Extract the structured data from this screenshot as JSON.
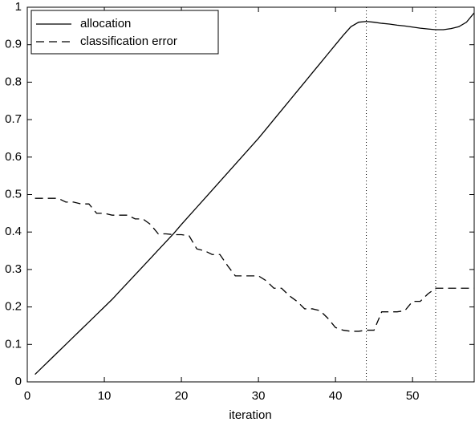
{
  "chart_data": {
    "type": "line",
    "xlabel": "iteration",
    "x": [
      1,
      2,
      3,
      4,
      5,
      6,
      7,
      8,
      9,
      10,
      11,
      12,
      13,
      14,
      15,
      16,
      17,
      18,
      19,
      20,
      21,
      22,
      23,
      24,
      25,
      26,
      27,
      28,
      29,
      30,
      31,
      32,
      33,
      34,
      35,
      36,
      37,
      38,
      39,
      40,
      41,
      42,
      43,
      44,
      45,
      46,
      47,
      48,
      49,
      50,
      51,
      52,
      53,
      54,
      55,
      56,
      57,
      58
    ],
    "series": [
      {
        "name": "allocation",
        "color": "#000000",
        "style": "solid",
        "values": [
          0.02,
          0.04,
          0.06,
          0.08,
          0.1,
          0.12,
          0.14,
          0.16,
          0.18,
          0.2,
          0.22,
          0.242,
          0.264,
          0.286,
          0.308,
          0.33,
          0.352,
          0.374,
          0.396,
          0.42,
          0.443,
          0.466,
          0.489,
          0.512,
          0.535,
          0.558,
          0.581,
          0.604,
          0.627,
          0.65,
          0.675,
          0.7,
          0.725,
          0.75,
          0.775,
          0.8,
          0.825,
          0.85,
          0.875,
          0.9,
          0.925,
          0.948,
          0.96,
          0.962,
          0.96,
          0.957,
          0.955,
          0.952,
          0.95,
          0.947,
          0.944,
          0.942,
          0.94,
          0.94,
          0.943,
          0.948,
          0.96,
          0.985
        ]
      },
      {
        "name": "classification error",
        "color": "#000000",
        "style": "dashed",
        "values": [
          0.49,
          0.49,
          0.49,
          0.49,
          0.48,
          0.48,
          0.475,
          0.475,
          0.45,
          0.45,
          0.445,
          0.445,
          0.445,
          0.435,
          0.435,
          0.42,
          0.395,
          0.395,
          0.393,
          0.393,
          0.39,
          0.355,
          0.35,
          0.34,
          0.34,
          0.31,
          0.283,
          0.283,
          0.283,
          0.283,
          0.27,
          0.25,
          0.25,
          0.23,
          0.215,
          0.195,
          0.195,
          0.19,
          0.17,
          0.145,
          0.138,
          0.135,
          0.135,
          0.138,
          0.138,
          0.187,
          0.187,
          0.187,
          0.19,
          0.215,
          0.215,
          0.235,
          0.25,
          0.25,
          0.25,
          0.25,
          0.25,
          0.25
        ]
      }
    ],
    "vlines": [
      44,
      53
    ],
    "xlim": [
      0,
      58
    ],
    "ylim": [
      0,
      1
    ],
    "xticks": [
      0,
      10,
      20,
      30,
      40,
      50
    ],
    "yticks": [
      0,
      0.1,
      0.2,
      0.3,
      0.4,
      0.5,
      0.6,
      0.7,
      0.8,
      0.9,
      1
    ],
    "legend": "upper-left"
  }
}
